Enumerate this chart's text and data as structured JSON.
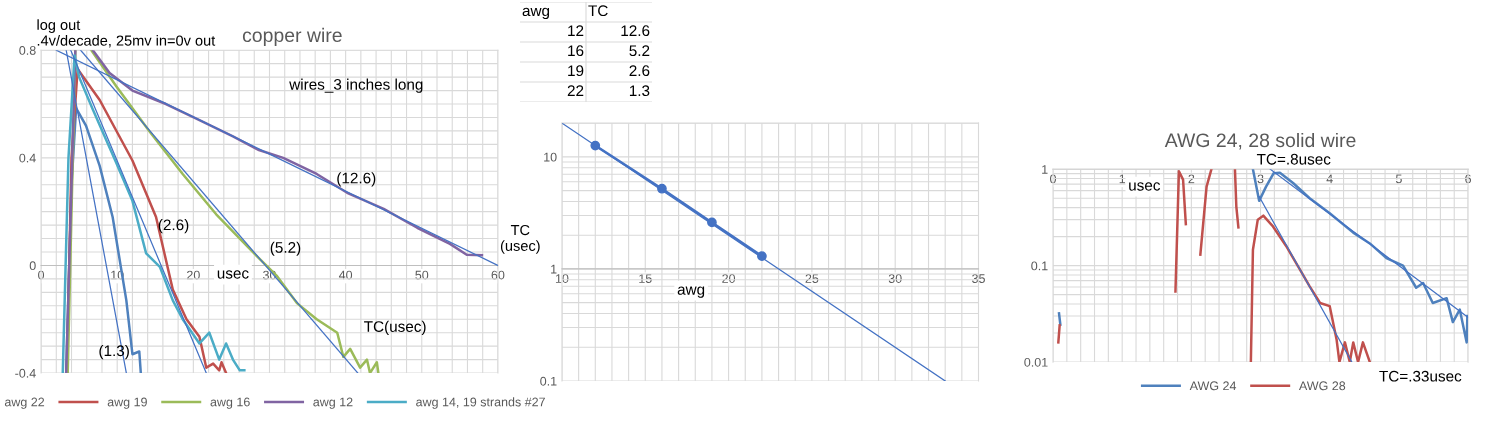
{
  "chart_data": [
    {
      "type": "line",
      "title": "copper wire",
      "xlabel": "usec",
      "ylabel": "log out\n.4v/decade, 25mv in=0v out",
      "xlim": [
        0,
        60
      ],
      "ylim": [
        -0.4,
        0.8
      ],
      "xticks": [
        0,
        10,
        20,
        30,
        40,
        50,
        60
      ],
      "yticks": [
        -0.4,
        0,
        0.4,
        0.8
      ],
      "grid": true,
      "legend": "bottom",
      "annotations": [
        "wires_3 inches long",
        "TC(usec)",
        "(12.6)",
        "(5.2)",
        "(2.6)",
        "(1.3)"
      ],
      "series": [
        {
          "name": "awg 22",
          "color": "#4f81bd",
          "x": [
            3.3,
            4.0,
            4.6,
            5.9,
            7.7,
            9.4,
            11.2,
            12.0,
            12.9,
            13.1
          ],
          "values": [
            -0.4,
            0.3,
            0.585,
            0.52,
            0.37,
            0.18,
            -0.13,
            -0.33,
            -0.32,
            -0.4
          ]
        },
        {
          "name": "awg 19",
          "color": "#c0504d",
          "x": [
            3.4,
            4.0,
            4.8,
            7.7,
            12.0,
            15.1,
            17.3,
            19.1,
            20.8,
            21.7,
            22.6,
            23.4,
            23.7,
            24.3
          ],
          "values": [
            -0.4,
            0.4,
            0.73,
            0.615,
            0.39,
            0.18,
            -0.09,
            -0.2,
            -0.265,
            -0.38,
            -0.365,
            -0.39,
            -0.36,
            -0.4
          ]
        },
        {
          "name": "awg 16",
          "color": "#9bbb59",
          "x": [
            3.5,
            4.5,
            5.5,
            6.6,
            9.9,
            14.2,
            18.6,
            23.0,
            28.5,
            31.0,
            33.6,
            36.2,
            38.9,
            39.7,
            40.6,
            41.9,
            42.8,
            43.2,
            44.1,
            44.3
          ],
          "values": [
            -0.4,
            0.8,
            null,
            0.8,
            0.665,
            0.5,
            0.34,
            0.19,
            0.03,
            -0.04,
            -0.14,
            -0.2,
            -0.25,
            -0.34,
            -0.31,
            -0.38,
            -0.35,
            -0.4,
            -0.36,
            -0.4
          ]
        },
        {
          "name": "awg 12",
          "color": "#8064a2",
          "x": [
            3.3,
            4.0,
            4.5,
            5.5,
            6.8,
            9.0,
            12.0,
            16.4,
            20.8,
            25.2,
            28.5,
            31.8,
            36.2,
            40.2,
            45.0,
            49.4,
            53.7,
            55.9,
            57.9
          ],
          "values": [
            -0.4,
            0.3,
            0.8,
            null,
            0.8,
            0.715,
            0.65,
            0.6,
            0.54,
            0.48,
            0.43,
            0.4,
            0.34,
            0.27,
            0.21,
            0.14,
            0.08,
            0.04,
            0.038
          ]
        },
        {
          "name": "awg 14, 19 strands #27",
          "color": "#4bacc6",
          "x": [
            2.85,
            3.6,
            4.4,
            5.0,
            6.8,
            9.9,
            12.0,
            13.8,
            15.6,
            17.3,
            18.6,
            20.8,
            22.1,
            23.4,
            24.3,
            25.2,
            26.1,
            26.7
          ],
          "values": [
            -0.4,
            0.4,
            0.78,
            0.7,
            0.58,
            0.38,
            0.24,
            0.045,
            -0.005,
            -0.13,
            -0.2,
            -0.29,
            -0.25,
            -0.35,
            -0.29,
            -0.35,
            -0.39,
            -0.39
          ]
        },
        {
          "color": "#4472c4",
          "marker": "none",
          "x": [
            2,
            60
          ],
          "values": [
            0.8,
            0.0
          ]
        },
        {
          "color": "#4472c4",
          "marker": "none",
          "x": [
            5.2,
            41.6
          ],
          "values": [
            0.8,
            -0.4
          ]
        },
        {
          "color": "#4472c4",
          "marker": "none",
          "x": [
            3.9,
            21.7
          ],
          "values": [
            0.8,
            -0.4
          ]
        },
        {
          "color": "#4472c4",
          "marker": "none",
          "x": [
            3.3,
            11.2
          ],
          "values": [
            0.8,
            -0.4
          ]
        }
      ]
    },
    {
      "type": "other",
      "annotations": [
        "awg",
        "TC",
        "12",
        "12.6",
        "16",
        "5.2",
        "19",
        "2.6",
        "22",
        "1.3"
      ]
    },
    {
      "type": "line",
      "xlabel": "awg",
      "ylabel": "TC\n(usec)",
      "log": "y",
      "xlim": [
        10,
        35
      ],
      "ylim": [
        0.1,
        20
      ],
      "xticks": [
        10,
        15,
        20,
        25,
        30,
        35
      ],
      "yticks": [
        0.1,
        1,
        10
      ],
      "grid": true,
      "series": [
        {
          "color": "#4472c4",
          "marker": "circle",
          "x": [
            12,
            16,
            19,
            22
          ],
          "values": [
            12.6,
            5.2,
            2.6,
            1.3
          ]
        },
        {
          "color": "#4472c4",
          "marker": "none",
          "x": [
            10,
            33
          ],
          "values": [
            20,
            0.1
          ]
        }
      ]
    },
    {
      "type": "line",
      "title": "AWG 24, 28 solid wire",
      "xlabel": "usec",
      "log": "y",
      "xlim": [
        0,
        6
      ],
      "ylim": [
        0.01,
        1
      ],
      "xticks": [
        0,
        1,
        2,
        3,
        4,
        5,
        6
      ],
      "yticks": [
        0.01,
        0.1,
        1
      ],
      "grid": true,
      "legend": "bottom",
      "annotations": [
        "TC=.8usec",
        "TC=.33usec"
      ],
      "series": [
        {
          "name": "AWG 24",
          "color": "#4f81bd",
          "x": [
            0.087,
            0.106,
            1.0,
            2.89,
            2.98,
            3.08,
            3.19,
            3.28,
            3.47,
            3.71,
            4.0,
            4.34,
            4.58,
            4.82,
            5.06,
            5.25,
            5.35,
            5.49,
            5.69,
            5.78,
            5.88,
            5.98,
            5.99
          ],
          "values": [
            0.032,
            0.0245,
            null,
            1,
            0.47,
            0.66,
            0.91,
            0.92,
            0.72,
            0.5,
            0.35,
            0.22,
            0.17,
            0.12,
            0.1,
            0.059,
            0.066,
            0.041,
            0.046,
            0.026,
            0.035,
            0.016,
            0.03
          ]
        },
        {
          "name": "AWG 28",
          "color": "#c0504d",
          "x": [
            0.077,
            0.096,
            1.0,
            1.77,
            1.82,
            1.88,
            1.92,
            2.0,
            2.13,
            2.22,
            2.29,
            2.5,
            2.63,
            2.65,
            2.68,
            2.8,
            2.86,
            2.89,
            2.96,
            3.04,
            3.18,
            3.37,
            3.57,
            3.71,
            3.86,
            4.0,
            4.1,
            4.14,
            4.22,
            4.29,
            4.34,
            4.41,
            4.48,
            4.58
          ],
          "values": [
            0.016,
            0.024,
            null,
            0.054,
            0.95,
            0.78,
            0.27,
            null,
            0.13,
            0.66,
            1,
            null,
            1,
            0.41,
            0.25,
            null,
            0.01,
            0.146,
            0.3,
            0.33,
            0.255,
            0.16,
            0.091,
            0.061,
            0.041,
            0.038,
            0.017,
            0.01,
            0.016,
            0.01,
            0.016,
            0.01,
            0.016,
            0.01
          ]
        },
        {
          "color": "#4472c4",
          "marker": "none",
          "x": [
            3.14,
            6
          ],
          "values": [
            1,
            0.029
          ]
        },
        {
          "color": "#4472c4",
          "marker": "none",
          "x": [
            2.98,
            4.32
          ],
          "values": [
            0.52,
            0.01
          ]
        }
      ]
    }
  ]
}
